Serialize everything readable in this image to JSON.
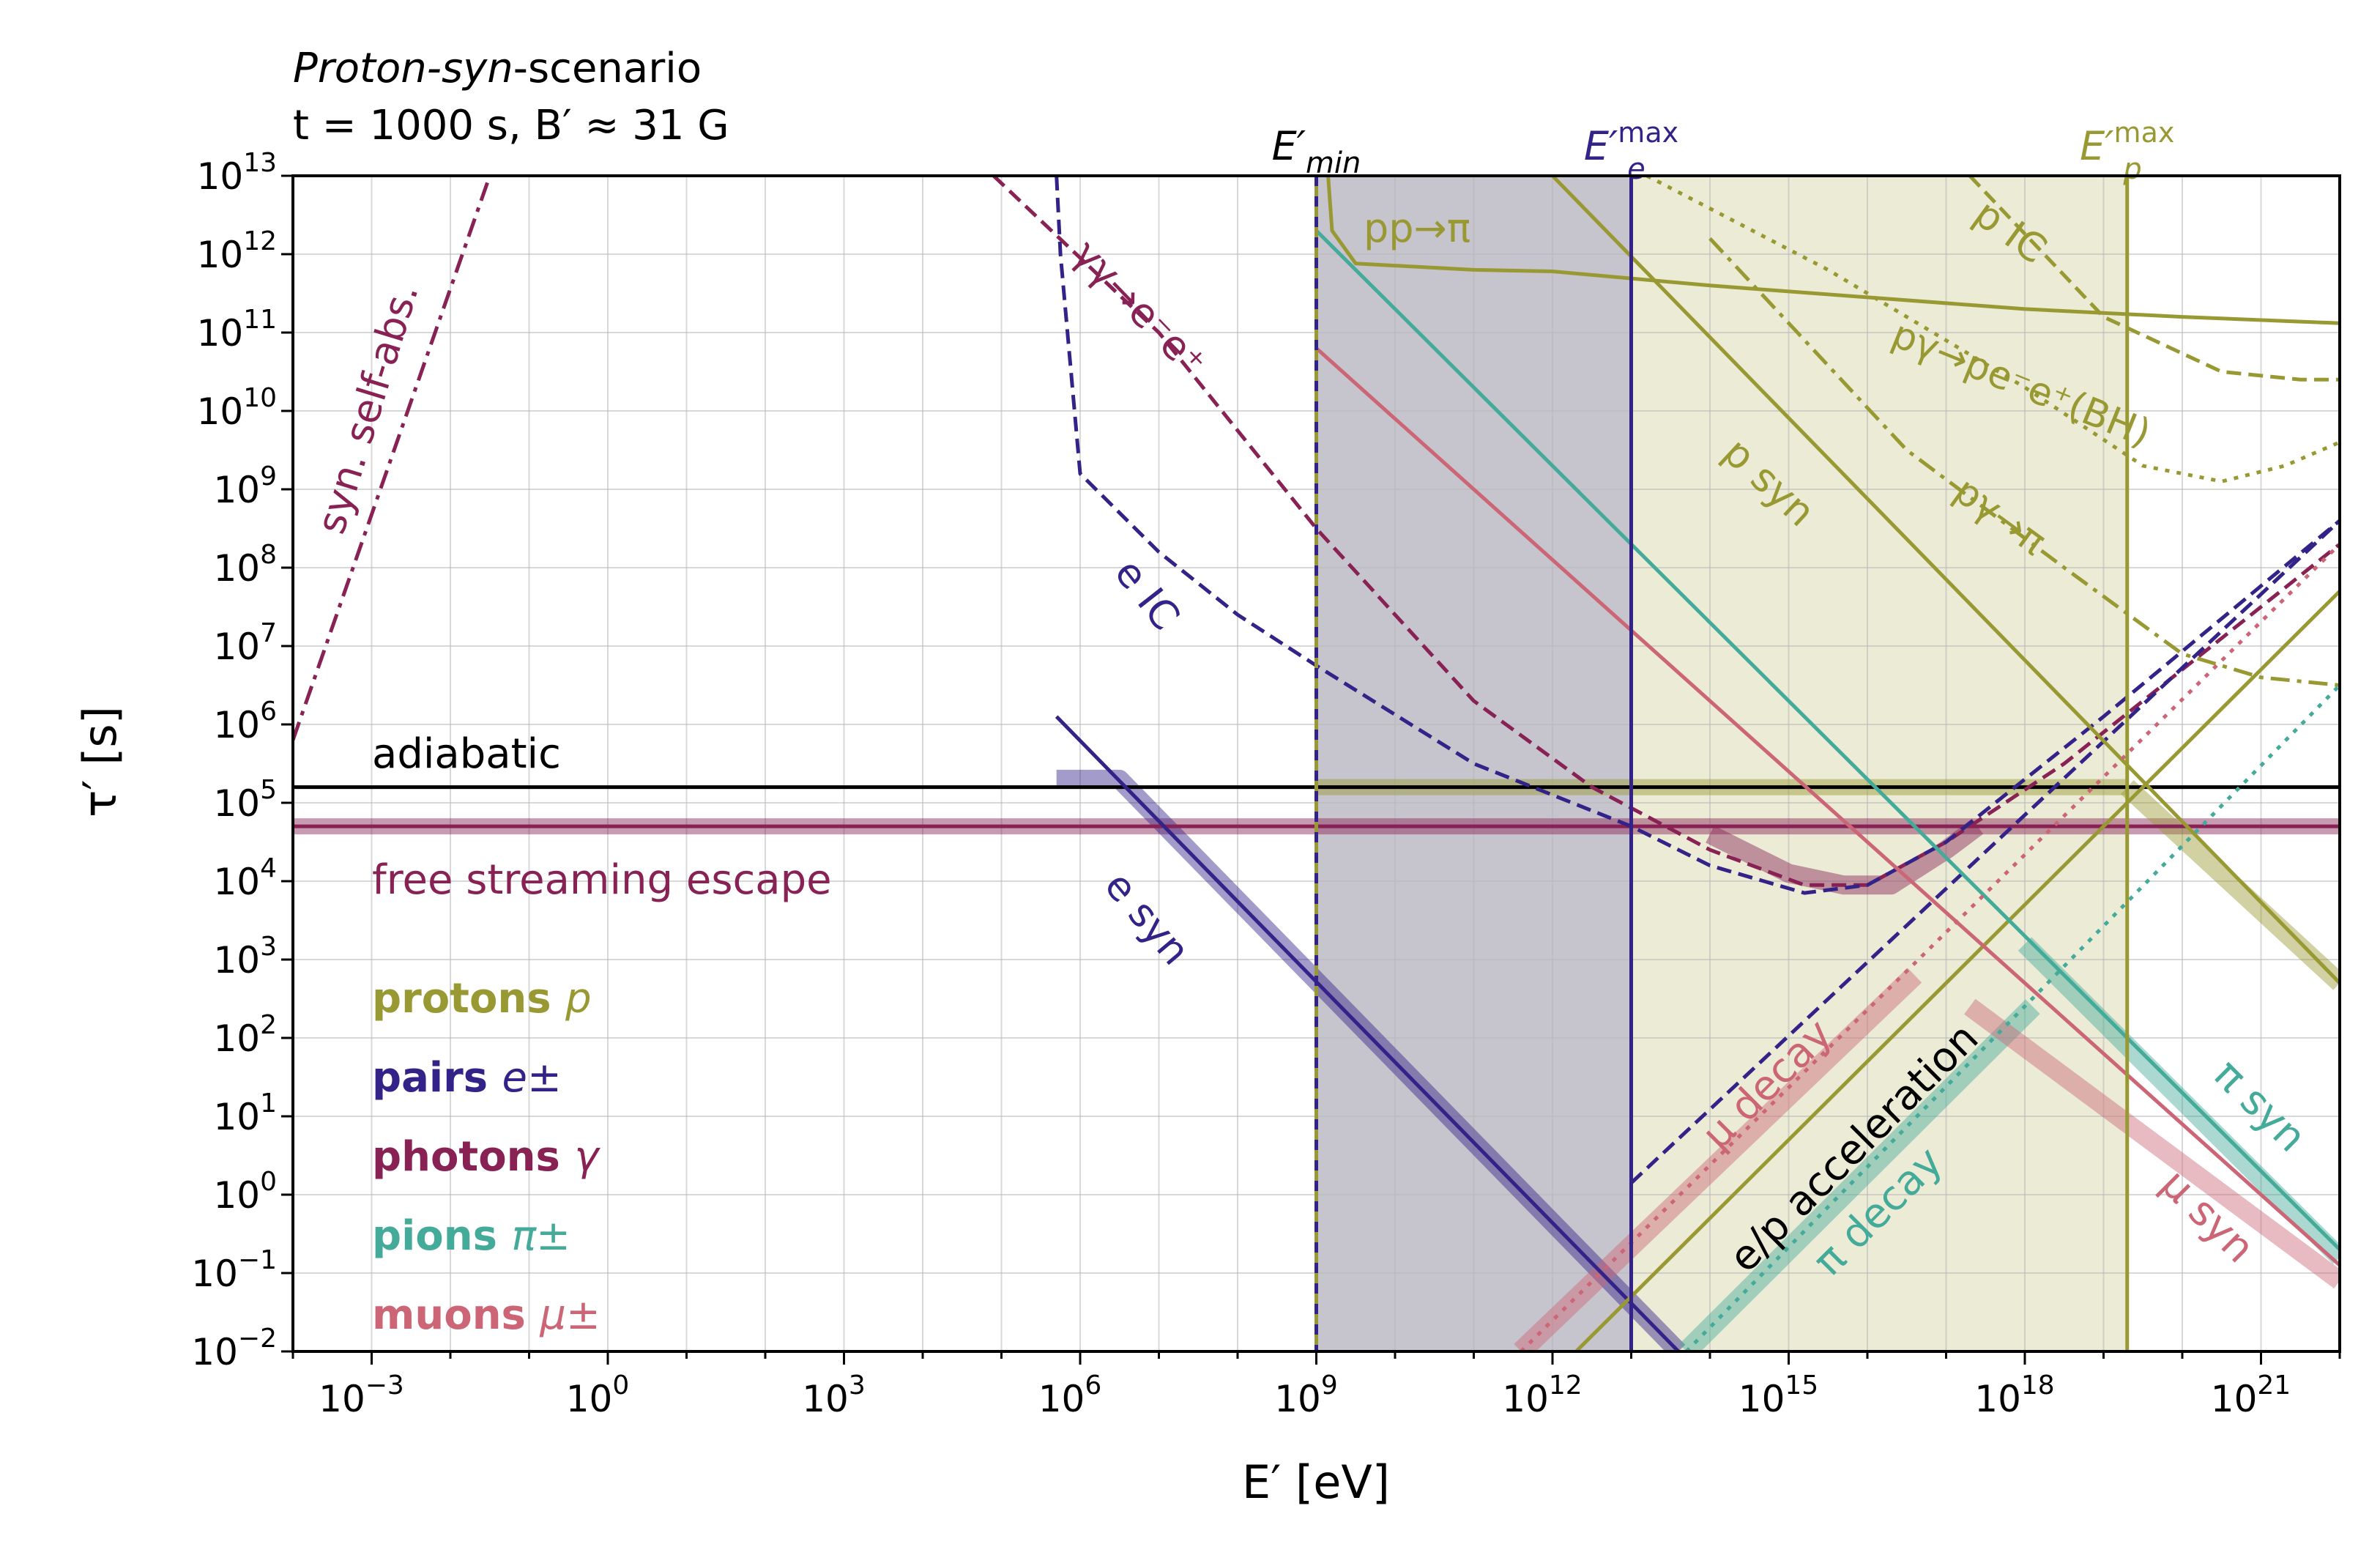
{
  "header": {
    "line1_a": "Proton-",
    "line1_b": "syn",
    "line1_c": "-scenario",
    "line2": "t = 1000 s, B′ ≈ 31 G"
  },
  "chart_data": {
    "type": "line",
    "xlabel": "E′ [eV]",
    "ylabel": "τ′ [s]",
    "xscale": "log",
    "yscale": "log",
    "xlim_log10": [
      -4,
      22
    ],
    "ylim_log10": [
      -2,
      13
    ],
    "x_ticks": [
      {
        "exp": -3,
        "label": "10",
        "sup": "−3"
      },
      {
        "exp": 0,
        "label": "10",
        "sup": "0"
      },
      {
        "exp": 3,
        "label": "10",
        "sup": "3"
      },
      {
        "exp": 6,
        "label": "10",
        "sup": "6"
      },
      {
        "exp": 9,
        "label": "10",
        "sup": "9"
      },
      {
        "exp": 12,
        "label": "10",
        "sup": "12"
      },
      {
        "exp": 15,
        "label": "10",
        "sup": "15"
      },
      {
        "exp": 18,
        "label": "10",
        "sup": "18"
      },
      {
        "exp": 21,
        "label": "10",
        "sup": "21"
      }
    ],
    "y_ticks": [
      {
        "exp": 13,
        "label": "10",
        "sup": "13"
      },
      {
        "exp": 12,
        "label": "10",
        "sup": "12"
      },
      {
        "exp": 11,
        "label": "10",
        "sup": "11"
      },
      {
        "exp": 10,
        "label": "10",
        "sup": "10"
      },
      {
        "exp": 9,
        "label": "10",
        "sup": "9"
      },
      {
        "exp": 8,
        "label": "10",
        "sup": "8"
      },
      {
        "exp": 7,
        "label": "10",
        "sup": "7"
      },
      {
        "exp": 6,
        "label": "10",
        "sup": "6"
      },
      {
        "exp": 5,
        "label": "10",
        "sup": "5"
      },
      {
        "exp": 4,
        "label": "10",
        "sup": "4"
      },
      {
        "exp": 3,
        "label": "10",
        "sup": "3"
      },
      {
        "exp": 2,
        "label": "10",
        "sup": "2"
      },
      {
        "exp": 1,
        "label": "10",
        "sup": "1"
      },
      {
        "exp": 0,
        "label": "10",
        "sup": "0"
      },
      {
        "exp": -1,
        "label": "10",
        "sup": "−1"
      },
      {
        "exp": -2,
        "label": "10",
        "sup": "−2"
      }
    ],
    "grid": true,
    "colors": {
      "protons": "#999933",
      "pairs": "#332288",
      "photons": "#882255",
      "pions": "#44aa99",
      "muons": "#cc6677",
      "black": "#000000",
      "shade_grey": "#c6c4cc",
      "shade_olive": "#ebebd6"
    },
    "shaded_regions": [
      {
        "name": "E′min to E′e max",
        "x_log10": [
          9,
          13
        ],
        "color": "shade_grey"
      },
      {
        "name": "E′e max to E′p max",
        "x_log10": [
          13,
          19.3
        ],
        "color": "shade_olive"
      }
    ],
    "vlines": [
      {
        "key": "emin",
        "label": "E′",
        "sub": "min",
        "sup": "",
        "x_log10": 9,
        "color": "protons",
        "dashed_color": "pairs"
      },
      {
        "key": "emax_e",
        "label": "E′",
        "sub": "e",
        "sup": "max",
        "x_log10": 13,
        "color": "pairs"
      },
      {
        "key": "emax_p",
        "label": "E′",
        "sub": "p",
        "sup": "max",
        "x_log10": 19.3,
        "color": "protons"
      }
    ],
    "series": [
      {
        "key": "adiabatic",
        "color": "black",
        "style": "solid",
        "width": 5,
        "points_log10": [
          [
            -4,
            5.2
          ],
          [
            22,
            5.2
          ]
        ]
      },
      {
        "key": "free_streaming",
        "color": "photons",
        "style": "solid",
        "width": 5,
        "points_log10": [
          [
            -4,
            4.7
          ],
          [
            22,
            4.7
          ]
        ]
      },
      {
        "key": "free_streaming_band",
        "color": "photons",
        "style": "band",
        "width": 22,
        "points_log10": [
          [
            -4,
            4.7
          ],
          [
            22,
            4.7
          ]
        ]
      },
      {
        "key": "ssa",
        "color": "photons",
        "style": "dashdot",
        "width": 5,
        "points_log10": [
          [
            -4,
            5.8
          ],
          [
            -1.5,
            13
          ]
        ]
      },
      {
        "key": "gg_ee",
        "color": "photons",
        "style": "dashed",
        "width": 5,
        "points_log10": [
          [
            4.9,
            13
          ],
          [
            7,
            11
          ],
          [
            9,
            8.5
          ],
          [
            11,
            6.3
          ],
          [
            12.5,
            5.2
          ],
          [
            14,
            4.4
          ],
          [
            15.2,
            3.95
          ],
          [
            16,
            3.95
          ],
          [
            17,
            4.5
          ],
          [
            18.5,
            5.5
          ],
          [
            20,
            6.7
          ],
          [
            22,
            8.3
          ]
        ]
      },
      {
        "key": "photon_total_band",
        "color": "photons",
        "style": "band",
        "width": 26,
        "points_log10": [
          [
            14,
            4.6
          ],
          [
            15,
            4.1
          ],
          [
            15.7,
            3.95
          ],
          [
            16.3,
            3.95
          ],
          [
            17,
            4.4
          ],
          [
            17.4,
            4.7
          ]
        ]
      },
      {
        "key": "e_ic",
        "color": "pairs",
        "style": "dashed",
        "width": 5,
        "points_log10": [
          [
            5.7,
            13
          ],
          [
            5.75,
            12
          ],
          [
            6,
            9.2
          ],
          [
            7,
            8.2
          ],
          [
            8,
            7.4
          ],
          [
            9,
            6.75
          ],
          [
            11,
            5.5
          ],
          [
            13,
            4.7
          ],
          [
            14,
            4.2
          ],
          [
            15.2,
            3.85
          ],
          [
            16,
            3.95
          ],
          [
            17,
            4.5
          ],
          [
            19,
            6.1
          ],
          [
            22,
            8.6
          ]
        ]
      },
      {
        "key": "e_syn_band",
        "color": "pairs",
        "style": "band",
        "width": 26,
        "points_log10": [
          [
            5.7,
            5.3
          ],
          [
            6.5,
            5.3
          ],
          [
            13.6,
            -2
          ]
        ]
      },
      {
        "key": "e_syn",
        "color": "pairs",
        "style": "solid",
        "width": 5,
        "points_log10": [
          [
            5.7,
            6.1
          ],
          [
            13.6,
            -2
          ]
        ]
      },
      {
        "key": "e_acc",
        "color": "pairs",
        "style": "dashed",
        "width": 5,
        "points_log10": [
          [
            13,
            0.15
          ],
          [
            22,
            8.6
          ]
        ]
      },
      {
        "key": "pp_pi",
        "color": "protons",
        "style": "solid",
        "width": 5,
        "points_log10": [
          [
            9.15,
            13
          ],
          [
            9.2,
            12.3
          ],
          [
            9.5,
            11.88
          ],
          [
            11,
            11.8
          ],
          [
            12,
            11.78
          ],
          [
            14,
            11.6
          ],
          [
            16,
            11.45
          ],
          [
            18,
            11.3
          ],
          [
            20,
            11.2
          ],
          [
            22,
            11.12
          ]
        ]
      },
      {
        "key": "p_syn",
        "color": "protons",
        "style": "solid",
        "width": 5,
        "points_log10": [
          [
            12,
            13
          ],
          [
            22,
            2.7
          ]
        ]
      },
      {
        "key": "p_syn_band",
        "color": "protons",
        "style": "band",
        "width": 26,
        "points_log10": [
          [
            19.3,
            5.2
          ],
          [
            22,
            2.7
          ]
        ]
      },
      {
        "key": "p_ic",
        "color": "protons",
        "style": "dashed",
        "width": 5,
        "points_log10": [
          [
            17.3,
            13
          ],
          [
            19,
            11.2
          ],
          [
            20.5,
            10.5
          ],
          [
            21.5,
            10.4
          ],
          [
            22,
            10.4
          ]
        ]
      },
      {
        "key": "pg_bh",
        "color": "protons",
        "style": "dotted",
        "width": 5,
        "points_log10": [
          [
            13.2,
            13
          ],
          [
            15.5,
            11.8
          ],
          [
            18,
            10.3
          ],
          [
            19.5,
            9.3
          ],
          [
            20.5,
            9.1
          ],
          [
            21.3,
            9.3
          ],
          [
            22,
            9.6
          ]
        ]
      },
      {
        "key": "pg_pi",
        "color": "protons",
        "style": "dashdot",
        "width": 5,
        "points_log10": [
          [
            14,
            12.2
          ],
          [
            16.5,
            9.5
          ],
          [
            18.5,
            8
          ],
          [
            20,
            6.9
          ],
          [
            21,
            6.6
          ],
          [
            22,
            6.5
          ]
        ]
      },
      {
        "key": "p_acc",
        "color": "protons",
        "style": "solid",
        "width": 5,
        "points_log10": [
          [
            12.3,
            -2
          ],
          [
            22,
            7.7
          ]
        ]
      },
      {
        "key": "p_acc_band",
        "color": "protons",
        "style": "band",
        "width": 22,
        "points_log10": [
          [
            9,
            5.2
          ],
          [
            19.3,
            5.2
          ]
        ]
      },
      {
        "key": "pi_syn",
        "color": "pions",
        "style": "solid",
        "width": 5,
        "points_log10": [
          [
            9,
            12.3
          ],
          [
            22,
            -0.7
          ]
        ]
      },
      {
        "key": "pi_syn_band",
        "color": "pions",
        "style": "band",
        "width": 26,
        "points_log10": [
          [
            18,
            3.2
          ],
          [
            22,
            -0.8
          ]
        ]
      },
      {
        "key": "pi_decay",
        "color": "pions",
        "style": "dotted",
        "width": 5,
        "points_log10": [
          [
            13.7,
            -2
          ],
          [
            22,
            6.5
          ]
        ]
      },
      {
        "key": "pi_decay_band",
        "color": "pions",
        "style": "band",
        "width": 28,
        "points_log10": [
          [
            13.7,
            -2
          ],
          [
            18.1,
            2.4
          ]
        ]
      },
      {
        "key": "mu_syn",
        "color": "muons",
        "style": "solid",
        "width": 5,
        "points_log10": [
          [
            9,
            10.8
          ],
          [
            22,
            -0.9
          ]
        ]
      },
      {
        "key": "mu_syn_band",
        "color": "muons",
        "style": "band",
        "width": 26,
        "points_log10": [
          [
            17.3,
            2.4
          ],
          [
            22,
            -1.1
          ]
        ]
      },
      {
        "key": "mu_decay",
        "color": "muons",
        "style": "dotted",
        "width": 5,
        "points_log10": [
          [
            11.6,
            -2
          ],
          [
            22,
            8.3
          ]
        ]
      },
      {
        "key": "mu_decay_band",
        "color": "muons",
        "style": "band",
        "width": 28,
        "points_log10": [
          [
            11.6,
            -2
          ],
          [
            16.6,
            2.8
          ]
        ]
      }
    ],
    "annotations": [
      {
        "key": "adiabatic",
        "text": "adiabatic",
        "color": "black"
      },
      {
        "key": "free_streaming",
        "text": "free streaming escape",
        "color": "photons"
      },
      {
        "key": "ssa",
        "text": "syn. self-abs.",
        "color": "photons"
      },
      {
        "key": "gg_ee",
        "text": "γγ→e⁻e⁺",
        "color": "photons"
      },
      {
        "key": "e_ic",
        "text": "e IC",
        "color": "pairs"
      },
      {
        "key": "e_syn",
        "text": "e syn",
        "color": "pairs"
      },
      {
        "key": "pp_pi",
        "text": "pp→π",
        "color": "protons"
      },
      {
        "key": "p_ic",
        "text": "p IC",
        "color": "protons"
      },
      {
        "key": "pg_bh",
        "text": "pγ→pe⁻e⁺(BH)",
        "color": "protons"
      },
      {
        "key": "p_syn",
        "text": "p syn",
        "color": "protons"
      },
      {
        "key": "pg_pi",
        "text": "pγ→π",
        "color": "protons"
      },
      {
        "key": "mu_decay",
        "text": "μ decay",
        "color": "muons"
      },
      {
        "key": "acc",
        "text": "e/p acceleration",
        "color": "black"
      },
      {
        "key": "pi_decay",
        "text": "π decay",
        "color": "pions"
      },
      {
        "key": "pi_syn",
        "text": "π syn",
        "color": "pions"
      },
      {
        "key": "mu_syn",
        "text": "μ syn",
        "color": "muons"
      }
    ],
    "legend": {
      "placement": "lower-left",
      "entries": [
        {
          "bold": "protons",
          "symbol": "p",
          "color": "protons"
        },
        {
          "bold": "pairs",
          "symbol": "e±",
          "color": "pairs"
        },
        {
          "bold": "photons",
          "symbol": "γ",
          "color": "photons"
        },
        {
          "bold": "pions",
          "symbol": "π±",
          "color": "pions"
        },
        {
          "bold": "muons",
          "symbol": "μ±",
          "color": "muons"
        }
      ]
    }
  }
}
